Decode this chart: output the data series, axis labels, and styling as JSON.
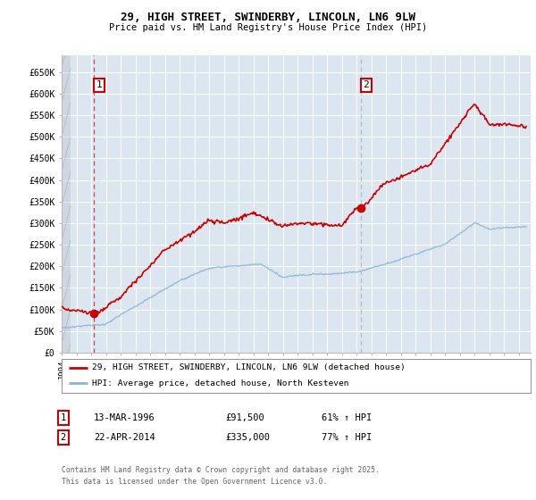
{
  "title1": "29, HIGH STREET, SWINDERBY, LINCOLN, LN6 9LW",
  "title2": "Price paid vs. HM Land Registry's House Price Index (HPI)",
  "ylim_max": 690000,
  "yticks": [
    0,
    50000,
    100000,
    150000,
    200000,
    250000,
    300000,
    350000,
    400000,
    450000,
    500000,
    550000,
    600000,
    650000
  ],
  "ytick_labels": [
    "£0",
    "£50K",
    "£100K",
    "£150K",
    "£200K",
    "£250K",
    "£300K",
    "£350K",
    "£400K",
    "£450K",
    "£500K",
    "£550K",
    "£600K",
    "£650K"
  ],
  "xlim_start": 1994.0,
  "xlim_end": 2025.8,
  "background_color": "#ffffff",
  "plot_bg_color": "#dce6f1",
  "grid_color": "#ffffff",
  "line1_color": "#cc0000",
  "line2_color": "#8ab4d4",
  "marker_color": "#cc0000",
  "dashed1_color": "#cc0000",
  "dashed2_color": "#aaaaaa",
  "sale1_x": 1996.2,
  "sale1_y": 91500,
  "sale2_x": 2014.3,
  "sale2_y": 335000,
  "annotation1_label": "1",
  "annotation2_label": "2",
  "legend_line1": "29, HIGH STREET, SWINDERBY, LINCOLN, LN6 9LW (detached house)",
  "legend_line2": "HPI: Average price, detached house, North Kesteven",
  "table_row1": [
    "1",
    "13-MAR-1996",
    "£91,500",
    "61% ↑ HPI"
  ],
  "table_row2": [
    "2",
    "22-APR-2014",
    "£335,000",
    "77% ↑ HPI"
  ],
  "footer": "Contains HM Land Registry data © Crown copyright and database right 2025.\nThis data is licensed under the Open Government Licence v3.0."
}
